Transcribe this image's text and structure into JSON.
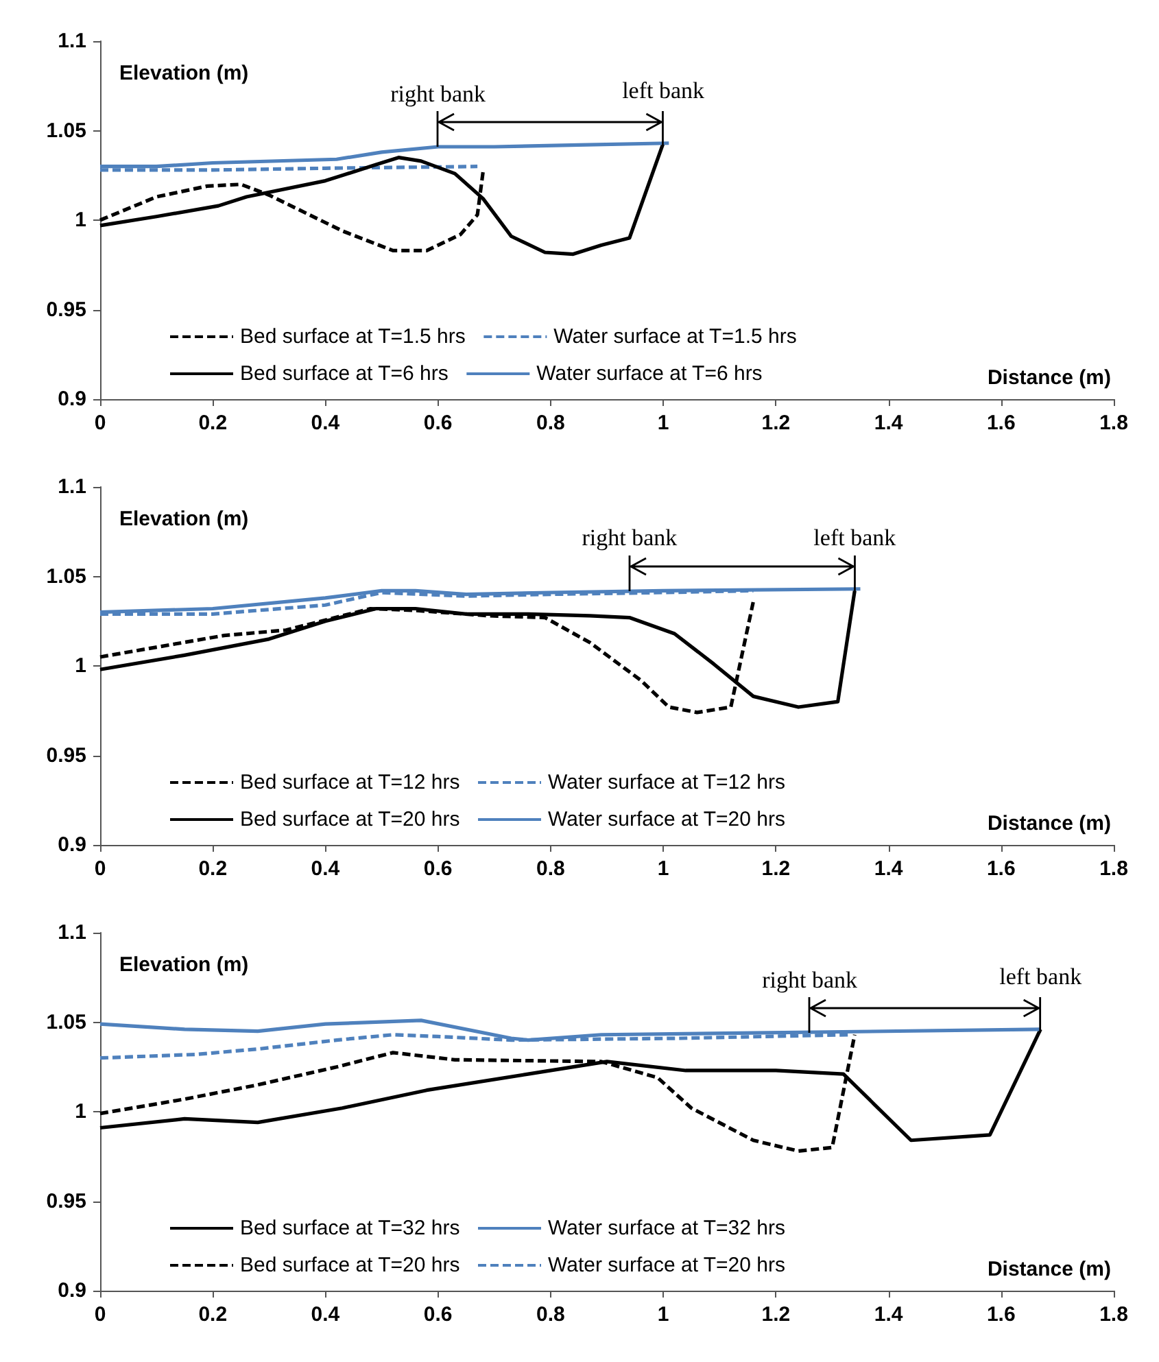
{
  "chart_data": [
    {
      "type": "line",
      "xlabel": "Distance (m)",
      "ylabel": "Elevation (m)",
      "xlim": [
        0,
        1.8
      ],
      "xticks": [
        0,
        0.2,
        0.4,
        0.6,
        0.8,
        1,
        1.2,
        1.4,
        1.6,
        1.8
      ],
      "ylim": [
        0.9,
        1.1
      ],
      "yticks": [
        0.9,
        0.95,
        1,
        1.05,
        1.1
      ],
      "grid": false,
      "legend": "bottom",
      "marker": "none",
      "annotations": [
        {
          "text": "right bank",
          "x": 0.6,
          "y": 1.041
        },
        {
          "text": "left bank",
          "x": 1.0,
          "y": 1.043
        }
      ],
      "series": [
        {
          "name": "Bed surface at T=1.5 hrs",
          "color": "#000000",
          "line_style": "dashed",
          "x": [
            0,
            0.1,
            0.19,
            0.25,
            0.3,
            0.43,
            0.52,
            0.58,
            0.64,
            0.67,
            0.68
          ],
          "values": [
            1.0,
            1.013,
            1.019,
            1.02,
            1.014,
            0.994,
            0.983,
            0.983,
            0.992,
            1.003,
            1.027
          ]
        },
        {
          "name": "Water surface at T=1.5 hrs",
          "color": "#4f81bd",
          "line_style": "dashed",
          "x": [
            0,
            0.2,
            0.4,
            0.67
          ],
          "values": [
            1.028,
            1.028,
            1.029,
            1.03
          ]
        },
        {
          "name": "Bed surface at T=6 hrs",
          "color": "#000000",
          "line_style": "solid",
          "x": [
            0,
            0.1,
            0.21,
            0.26,
            0.4,
            0.49,
            0.53,
            0.57,
            0.63,
            0.68,
            0.73,
            0.79,
            0.84,
            0.89,
            0.94,
            1.0
          ],
          "values": [
            0.997,
            1.002,
            1.008,
            1.013,
            1.022,
            1.031,
            1.035,
            1.033,
            1.026,
            1.012,
            0.991,
            0.982,
            0.981,
            0.986,
            0.99,
            1.043
          ]
        },
        {
          "name": "Water surface at T=6 hrs",
          "color": "#4f81bd",
          "line_style": "solid",
          "x": [
            0,
            0.1,
            0.2,
            0.42,
            0.5,
            0.6,
            0.7,
            0.85,
            1.01
          ],
          "values": [
            1.03,
            1.03,
            1.032,
            1.034,
            1.038,
            1.041,
            1.041,
            1.042,
            1.043
          ]
        }
      ]
    },
    {
      "type": "line",
      "xlabel": "Distance (m)",
      "ylabel": "Elevation (m)",
      "xlim": [
        0,
        1.8
      ],
      "xticks": [
        0,
        0.2,
        0.4,
        0.6,
        0.8,
        1,
        1.2,
        1.4,
        1.6,
        1.8
      ],
      "ylim": [
        0.9,
        1.1
      ],
      "yticks": [
        0.9,
        0.95,
        1,
        1.05,
        1.1
      ],
      "grid": false,
      "legend": "bottom",
      "marker": "none",
      "annotations": [
        {
          "text": "right bank",
          "x": 0.94,
          "y": 1.042
        },
        {
          "text": "left bank",
          "x": 1.34,
          "y": 1.042
        }
      ],
      "series": [
        {
          "name": "Bed surface at T=12 hrs",
          "color": "#000000",
          "line_style": "dashed",
          "x": [
            0,
            0.22,
            0.33,
            0.48,
            0.56,
            0.69,
            0.79,
            0.87,
            0.96,
            1.01,
            1.06,
            1.12,
            1.16
          ],
          "values": [
            1.005,
            1.017,
            1.02,
            1.032,
            1.031,
            1.028,
            1.027,
            1.013,
            0.992,
            0.977,
            0.974,
            0.977,
            1.036
          ]
        },
        {
          "name": "Water surface at T=12 hrs",
          "color": "#4f81bd",
          "line_style": "dashed",
          "x": [
            0,
            0.2,
            0.4,
            0.5,
            0.65,
            0.8,
            1.0,
            1.16
          ],
          "values": [
            1.029,
            1.029,
            1.034,
            1.041,
            1.039,
            1.04,
            1.041,
            1.042
          ]
        },
        {
          "name": "Bed surface at T=20 hrs",
          "color": "#000000",
          "line_style": "solid",
          "x": [
            0,
            0.15,
            0.3,
            0.4,
            0.49,
            0.56,
            0.65,
            0.76,
            0.87,
            0.94,
            1.02,
            1.09,
            1.16,
            1.24,
            1.31,
            1.34
          ],
          "values": [
            0.998,
            1.006,
            1.015,
            1.025,
            1.032,
            1.032,
            1.029,
            1.029,
            1.028,
            1.027,
            1.018,
            1.001,
            0.983,
            0.977,
            0.98,
            1.042
          ]
        },
        {
          "name": "Water surface at T=20 hrs",
          "color": "#4f81bd",
          "line_style": "solid",
          "x": [
            0,
            0.2,
            0.4,
            0.5,
            0.56,
            0.65,
            0.8,
            1.0,
            1.35
          ],
          "values": [
            1.03,
            1.032,
            1.038,
            1.042,
            1.042,
            1.04,
            1.041,
            1.042,
            1.043
          ]
        }
      ]
    },
    {
      "type": "line",
      "xlabel": "Distance (m)",
      "ylabel": "Elevation (m)",
      "xlim": [
        0,
        1.8
      ],
      "xticks": [
        0,
        0.2,
        0.4,
        0.6,
        0.8,
        1,
        1.2,
        1.4,
        1.6,
        1.8
      ],
      "ylim": [
        0.9,
        1.1
      ],
      "yticks": [
        0.9,
        0.95,
        1,
        1.05,
        1.1
      ],
      "grid": false,
      "legend": "bottom",
      "marker": "none",
      "annotations": [
        {
          "text": "right bank",
          "x": 1.26,
          "y": 1.044
        },
        {
          "text": "left bank",
          "x": 1.67,
          "y": 1.046
        }
      ],
      "series": [
        {
          "name": "Bed surface at T=32 hrs",
          "color": "#000000",
          "line_style": "solid",
          "x": [
            0,
            0.15,
            0.28,
            0.43,
            0.58,
            0.76,
            0.9,
            1.04,
            1.2,
            1.32,
            1.44,
            1.58,
            1.67
          ],
          "values": [
            0.991,
            0.996,
            0.994,
            1.002,
            1.012,
            1.021,
            1.028,
            1.023,
            1.023,
            1.021,
            0.984,
            0.987,
            1.046
          ]
        },
        {
          "name": "Water surface at T=32 hrs",
          "color": "#4f81bd",
          "line_style": "solid",
          "x": [
            0,
            0.15,
            0.28,
            0.4,
            0.57,
            0.73,
            0.76,
            0.89,
            1.16,
            1.67
          ],
          "values": [
            1.049,
            1.046,
            1.045,
            1.049,
            1.051,
            1.041,
            1.04,
            1.043,
            1.044,
            1.046
          ]
        },
        {
          "name": "Bed surface at T=20 hrs",
          "color": "#000000",
          "line_style": "dashed",
          "x": [
            0,
            0.15,
            0.28,
            0.42,
            0.52,
            0.63,
            0.89,
            0.99,
            1.05,
            1.16,
            1.24,
            1.3,
            1.34
          ],
          "values": [
            0.999,
            1.007,
            1.015,
            1.025,
            1.033,
            1.029,
            1.028,
            1.019,
            1.002,
            0.984,
            0.978,
            0.98,
            1.043
          ]
        },
        {
          "name": "Water surface at T=20 hrs",
          "color": "#4f81bd",
          "line_style": "dashed",
          "x": [
            0,
            0.17,
            0.28,
            0.42,
            0.52,
            0.6,
            0.73,
            1.03,
            1.33
          ],
          "values": [
            1.03,
            1.032,
            1.035,
            1.04,
            1.043,
            1.042,
            1.04,
            1.041,
            1.043
          ]
        }
      ]
    }
  ]
}
